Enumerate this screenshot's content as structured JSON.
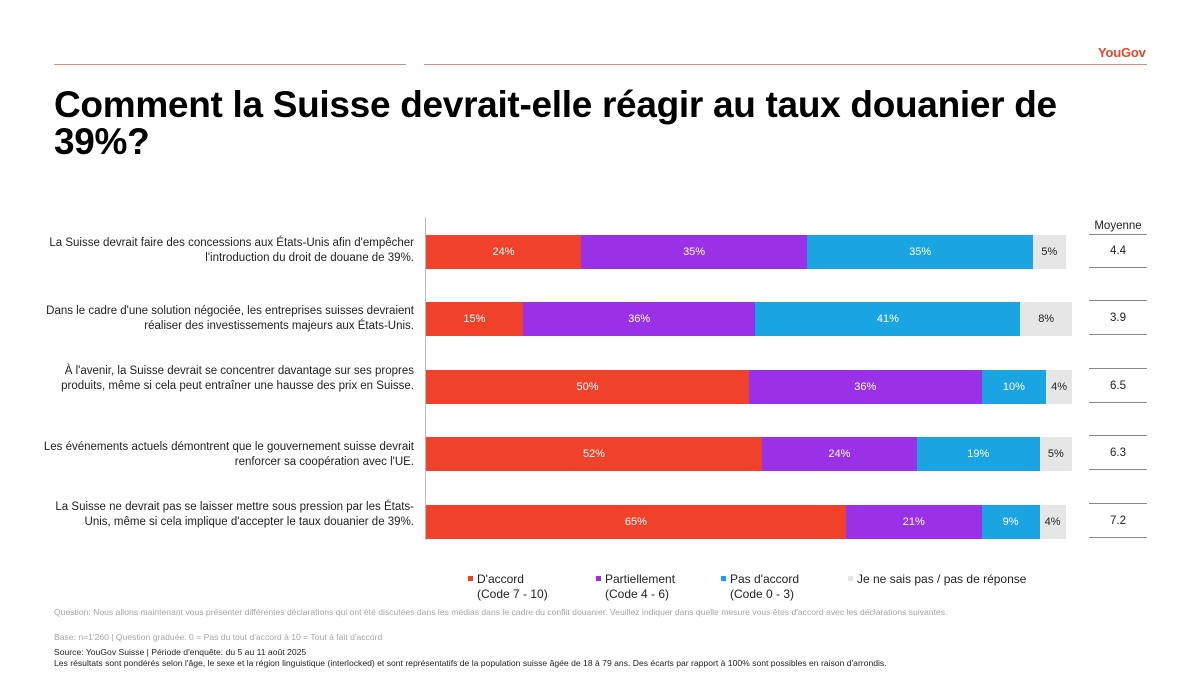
{
  "brand": "YouGov",
  "title": "Comment la Suisse devrait-elle réagir au taux douanier de 39%?",
  "colors": {
    "accord": "#f0412b",
    "partiel": "#9a31e6",
    "pas_accord": "#1ba4e2",
    "ne_sais_pas": "#e6e6e6",
    "brand": "#e8452f"
  },
  "mean_header": "Moyenne",
  "chart_data": {
    "type": "bar",
    "orientation": "horizontal",
    "stacked": true,
    "xlim": [
      0,
      100
    ],
    "categories": [
      "La Suisse devrait faire des concessions aux États-Unis afin d'empêcher l'introduction du droit de douane de 39%.",
      "Dans le cadre d'une solution négociée, les entreprises suisses devraient réaliser des investissements majeurs aux États-Unis.",
      "À l'avenir, la Suisse devrait se concentrer davantage sur ses propres produits, même si cela peut entraîner une hausse des prix en Suisse.",
      "Les événements actuels démontrent que le gouvernement suisse devrait renforcer sa coopération avec l'UE.",
      "La Suisse ne devrait pas se laisser mettre sous pression par les États-Unis, même si cela implique d'accepter le taux douanier de 39%."
    ],
    "series": [
      {
        "name": "D'accord (Code 7 - 10)",
        "values": [
          24,
          15,
          50,
          52,
          65
        ]
      },
      {
        "name": "Partiellement (Code 4 - 6)",
        "values": [
          35,
          36,
          36,
          24,
          21
        ]
      },
      {
        "name": "Pas d'accord (Code 0 - 3)",
        "values": [
          35,
          41,
          10,
          19,
          9
        ]
      },
      {
        "name": "Je ne sais pas / pas de réponse",
        "values": [
          5,
          8,
          4,
          5,
          4
        ]
      }
    ],
    "means": [
      "4.4",
      "3.9",
      "6.5",
      "6.3",
      "7.2"
    ]
  },
  "legend": [
    {
      "line1": "D'accord",
      "line2": "(Code 7 - 10)"
    },
    {
      "line1": "Partiellement",
      "line2": "(Code 4 - 6)"
    },
    {
      "line1": "Pas d'accord",
      "line2": "(Code 0 - 3)"
    },
    {
      "line1": "Je ne sais pas / pas de réponse",
      "line2": ""
    }
  ],
  "footnotes": {
    "question": "Question: Nous allons maintenant vous présenter différentes déclarations qui ont été discutées dans les médias dans le cadre du conflit douanier. Veuillez indiquer dans quelle mesure vous êtes d'accord avec les déclarations suivantes.",
    "base": "Base: n=1'260 | Question graduée: 0 = Pas du tout d'accord à 10 = Tout à fait d'accord",
    "source": "Source: YouGov Suisse | Période d'enquête: du 5 au 11 août 2025",
    "note": "Les résultats sont pondérés selon l'âge, le sexe et la région linguistique (interlocked) et sont représentatifs de la population suisse âgée de 18 à 79 ans. Des écarts par rapport à 100% sont possibles en raison d'arrondis."
  }
}
